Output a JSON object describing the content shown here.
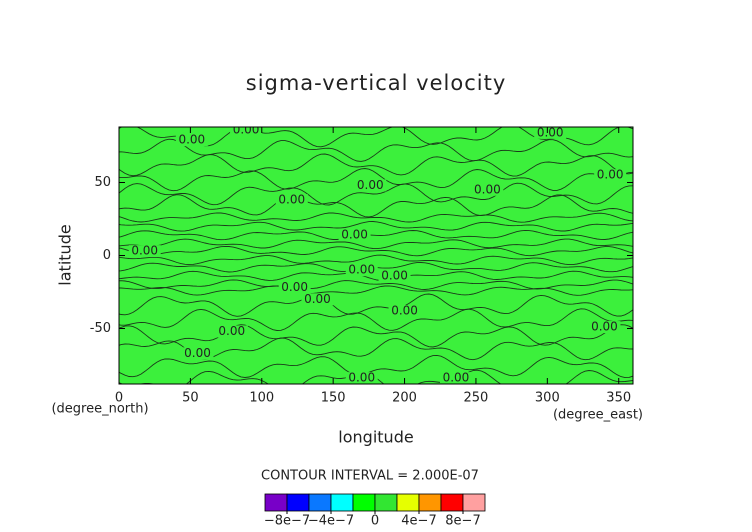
{
  "chart_data": {
    "type": "contour",
    "title": "sigma-vertical velocity",
    "xlabel": "longitude",
    "ylabel": "latitude",
    "xunit": "(degree_east)",
    "yunit": "(degree_north)",
    "xlim": [
      0,
      360
    ],
    "ylim": [
      -88,
      88
    ],
    "xticks": [
      0,
      50,
      100,
      150,
      200,
      250,
      300,
      350
    ],
    "yticks": [
      -50,
      0,
      50
    ],
    "field_color": "#3cf03c",
    "contour_level": 0,
    "contour_interval_text": "CONTOUR INTERVAL = 2.000E-07",
    "contour_labels": [
      {
        "text": "0.00",
        "lon": 51,
        "lat": 79
      },
      {
        "text": "0.00",
        "lon": 89,
        "lat": 86
      },
      {
        "text": "0.00",
        "lon": 302,
        "lat": 84
      },
      {
        "text": "0.00",
        "lon": 344,
        "lat": 55
      },
      {
        "text": "0.00",
        "lon": 176,
        "lat": 48
      },
      {
        "text": "0.00",
        "lon": 258,
        "lat": 45
      },
      {
        "text": "0.00",
        "lon": 121,
        "lat": 38
      },
      {
        "text": "0.00",
        "lon": 165,
        "lat": 14
      },
      {
        "text": "0.00",
        "lon": 18,
        "lat": 3
      },
      {
        "text": "0.00",
        "lon": 170,
        "lat": -10
      },
      {
        "text": "0.00",
        "lon": 193,
        "lat": -14
      },
      {
        "text": "0.00",
        "lon": 123,
        "lat": -22
      },
      {
        "text": "0.00",
        "lon": 139,
        "lat": -30
      },
      {
        "text": "0.00",
        "lon": 200,
        "lat": -38
      },
      {
        "text": "0.00",
        "lon": 340,
        "lat": -49
      },
      {
        "text": "0.00",
        "lon": 79,
        "lat": -52
      },
      {
        "text": "0.00",
        "lon": 55,
        "lat": -67
      },
      {
        "text": "0.00",
        "lon": 170,
        "lat": -84
      },
      {
        "text": "0.00",
        "lon": 236,
        "lat": -84
      }
    ],
    "colorbar": {
      "lim": [
        -1e-06,
        1e-06
      ],
      "colors": [
        "#7800c8",
        "#0000ff",
        "#0a78ff",
        "#00ffff",
        "#00ff00",
        "#32e632",
        "#e6ff00",
        "#ff9600",
        "#ff0000",
        "#ffa0a0"
      ],
      "ticks": [
        {
          "value": -8e-07,
          "label": "−8e−7"
        },
        {
          "value": -4e-07,
          "label": "−4e−7"
        },
        0,
        {
          "value": 4e-07,
          "label": "4e−7"
        },
        {
          "value": 8e-07,
          "label": "8e−7"
        }
      ]
    }
  }
}
